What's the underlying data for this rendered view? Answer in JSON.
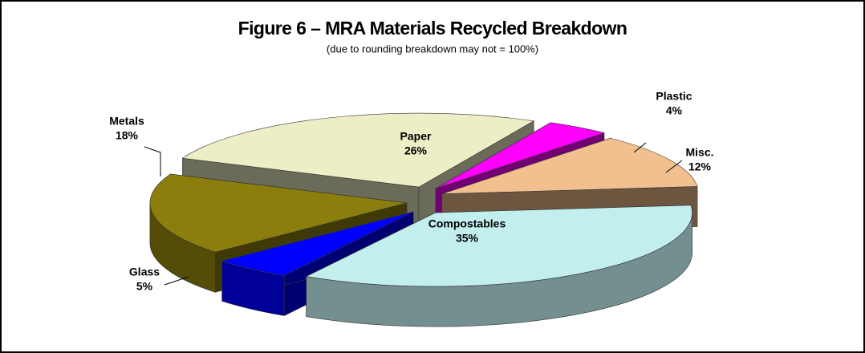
{
  "chart_data": {
    "type": "pie",
    "title": "Figure 6 – MRA Materials Recycled Breakdown",
    "subtitle": "(due to rounding breakdown may not = 100%)",
    "categories": [
      "Paper",
      "Plastic",
      "Misc.",
      "Compostables",
      "Glass",
      "Metals"
    ],
    "values": [
      26,
      4,
      12,
      35,
      5,
      18
    ],
    "value_labels": [
      "26%",
      "4%",
      "12%",
      "35%",
      "5%",
      "18%"
    ],
    "colors": [
      "#eeeec6",
      "#ff00ff",
      "#f2c08e",
      "#c2eeee",
      "#0000ff",
      "#8c7e0c"
    ]
  }
}
